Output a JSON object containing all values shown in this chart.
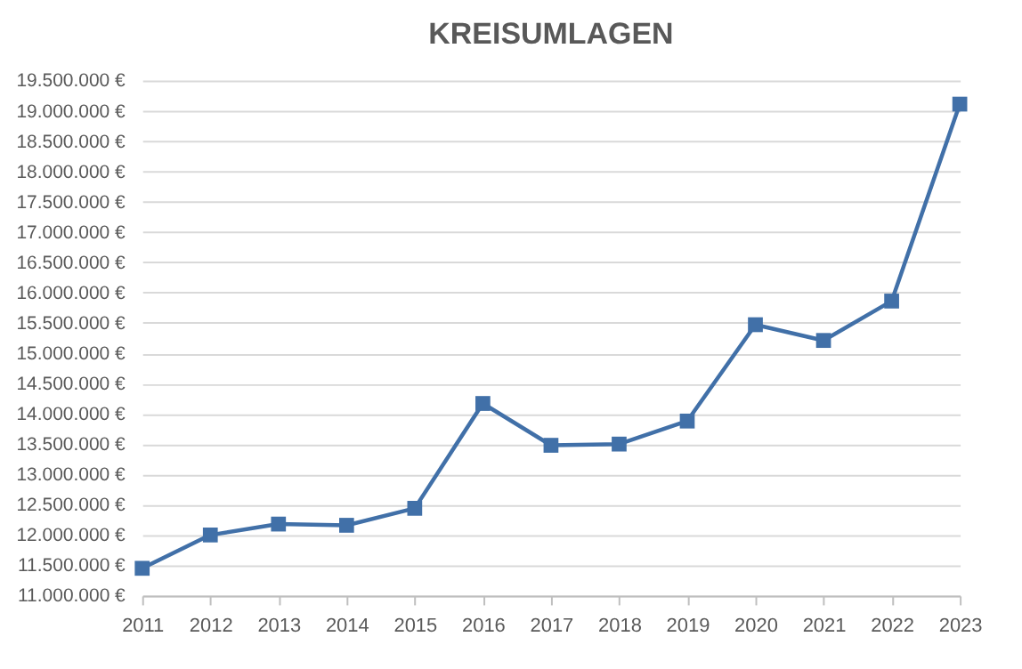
{
  "chart_data": {
    "type": "line",
    "title": "KREISUMLAGEN",
    "categories": [
      "2011",
      "2012",
      "2013",
      "2014",
      "2015",
      "2016",
      "2017",
      "2018",
      "2019",
      "2020",
      "2021",
      "2022",
      "2023"
    ],
    "series": [
      {
        "color": "#4170a8",
        "values": [
          11450000,
          12000000,
          12180000,
          12160000,
          12440000,
          14170000,
          13480000,
          13500000,
          13880000,
          15470000,
          15210000,
          15860000,
          19110000
        ]
      }
    ],
    "ylim": [
      11000000,
      19500000
    ],
    "yticks": [
      {
        "value": 11000000,
        "label": "11.000.000 €"
      },
      {
        "value": 11500000,
        "label": "11.500.000 €"
      },
      {
        "value": 12000000,
        "label": "12.000.000 €"
      },
      {
        "value": 12500000,
        "label": "12.500.000 €"
      },
      {
        "value": 13000000,
        "label": "13.000.000 €"
      },
      {
        "value": 13500000,
        "label": "13.500.000 €"
      },
      {
        "value": 14000000,
        "label": "14.000.000 €"
      },
      {
        "value": 14500000,
        "label": "14.500.000 €"
      },
      {
        "value": 15000000,
        "label": "15.000.000 €"
      },
      {
        "value": 15500000,
        "label": "15.500.000 €"
      },
      {
        "value": 16000000,
        "label": "16.000.000 €"
      },
      {
        "value": 16500000,
        "label": "16.500.000 €"
      },
      {
        "value": 17000000,
        "label": "17.000.000 €"
      },
      {
        "value": 17500000,
        "label": "17.500.000 €"
      },
      {
        "value": 18000000,
        "label": "18.000.000 €"
      },
      {
        "value": 18500000,
        "label": "18.500.000 €"
      },
      {
        "value": 19000000,
        "label": "19.000.000 €"
      },
      {
        "value": 19500000,
        "label": "19.500.000 €"
      }
    ],
    "grid": "y",
    "marker": "square",
    "line_style": "solid"
  }
}
